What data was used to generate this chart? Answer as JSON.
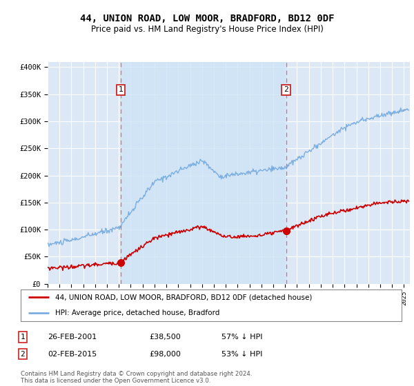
{
  "title": "44, UNION ROAD, LOW MOOR, BRADFORD, BD12 0DF",
  "subtitle": "Price paid vs. HM Land Registry's House Price Index (HPI)",
  "ylabel_ticks": [
    "£0",
    "£50K",
    "£100K",
    "£150K",
    "£200K",
    "£250K",
    "£300K",
    "£350K",
    "£400K"
  ],
  "ytick_values": [
    0,
    50000,
    100000,
    150000,
    200000,
    250000,
    300000,
    350000,
    400000
  ],
  "ylim": [
    0,
    410000
  ],
  "xlim_start": 1995.0,
  "xlim_end": 2025.5,
  "background_color": "#dce8f5",
  "grid_color": "#ffffff",
  "sale1_year": 2001.15,
  "sale1_price": 38500,
  "sale2_year": 2015.08,
  "sale2_price": 98000,
  "legend_label1": "44, UNION ROAD, LOW MOOR, BRADFORD, BD12 0DF (detached house)",
  "legend_label2": "HPI: Average price, detached house, Bradford",
  "annotation1_date": "26-FEB-2001",
  "annotation1_price": "£38,500",
  "annotation1_hpi": "57% ↓ HPI",
  "annotation2_date": "02-FEB-2015",
  "annotation2_price": "£98,000",
  "annotation2_hpi": "53% ↓ HPI",
  "footer": "Contains HM Land Registry data © Crown copyright and database right 2024.\nThis data is licensed under the Open Government Licence v3.0.",
  "red_line_color": "#cc0000",
  "blue_line_color": "#7aade0",
  "dashed_line_color": "#e06060",
  "box_color": "#cc2222",
  "shade_color": "#d0e4f5"
}
